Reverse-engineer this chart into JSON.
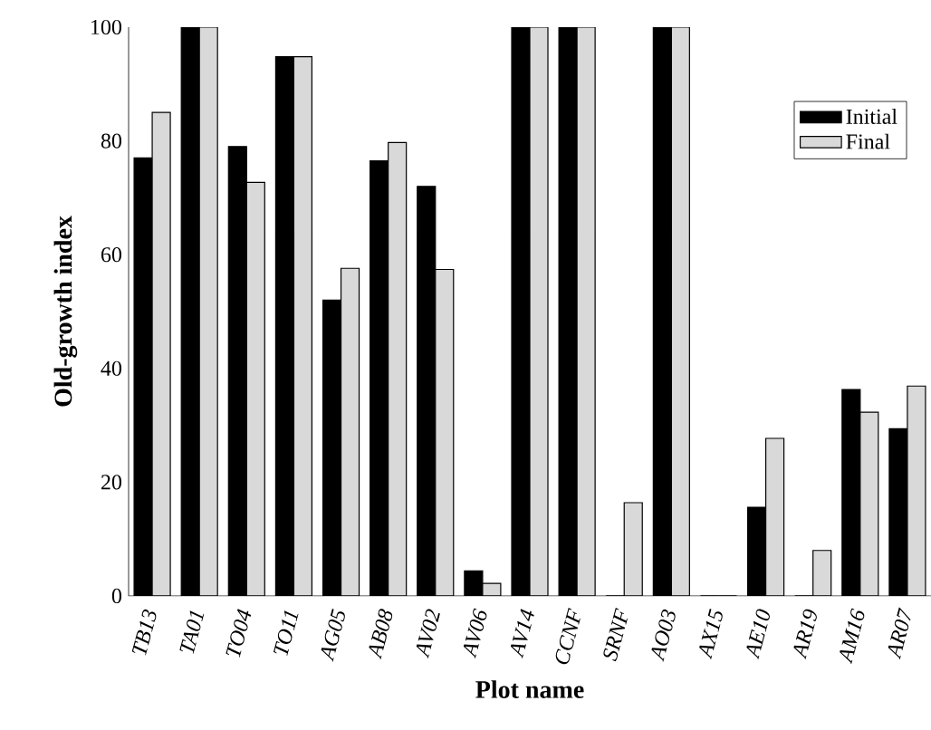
{
  "chart_data": {
    "type": "bar",
    "xlabel": "Plot name",
    "ylabel": "Old-growth index",
    "categories": [
      "TB13",
      "TA01",
      "TO04",
      "TO11",
      "AG05",
      "AB08",
      "AV02",
      "AV06",
      "AV14",
      "CCNF",
      "SRNF",
      "AO03",
      "AX15",
      "AE10",
      "AR19",
      "AM16",
      "AR07"
    ],
    "series": [
      {
        "name": "Initial",
        "color": "#000000",
        "values": [
          77,
          100,
          79,
          94.8,
          52,
          76.5,
          72,
          4.4,
          100,
          100,
          0,
          100,
          0,
          15.6,
          0,
          36.3,
          29.4
        ]
      },
      {
        "name": "Final",
        "color": "#d9d9d9",
        "values": [
          85,
          100,
          72.7,
          94.8,
          57.6,
          79.7,
          57.4,
          2.2,
          100,
          100,
          16.4,
          100,
          0,
          27.7,
          8,
          32.3,
          36.9
        ]
      }
    ],
    "ylim": [
      0,
      100
    ],
    "yticks": [
      0,
      20,
      40,
      60,
      80,
      100
    ],
    "grid": false,
    "legend": "top right"
  }
}
